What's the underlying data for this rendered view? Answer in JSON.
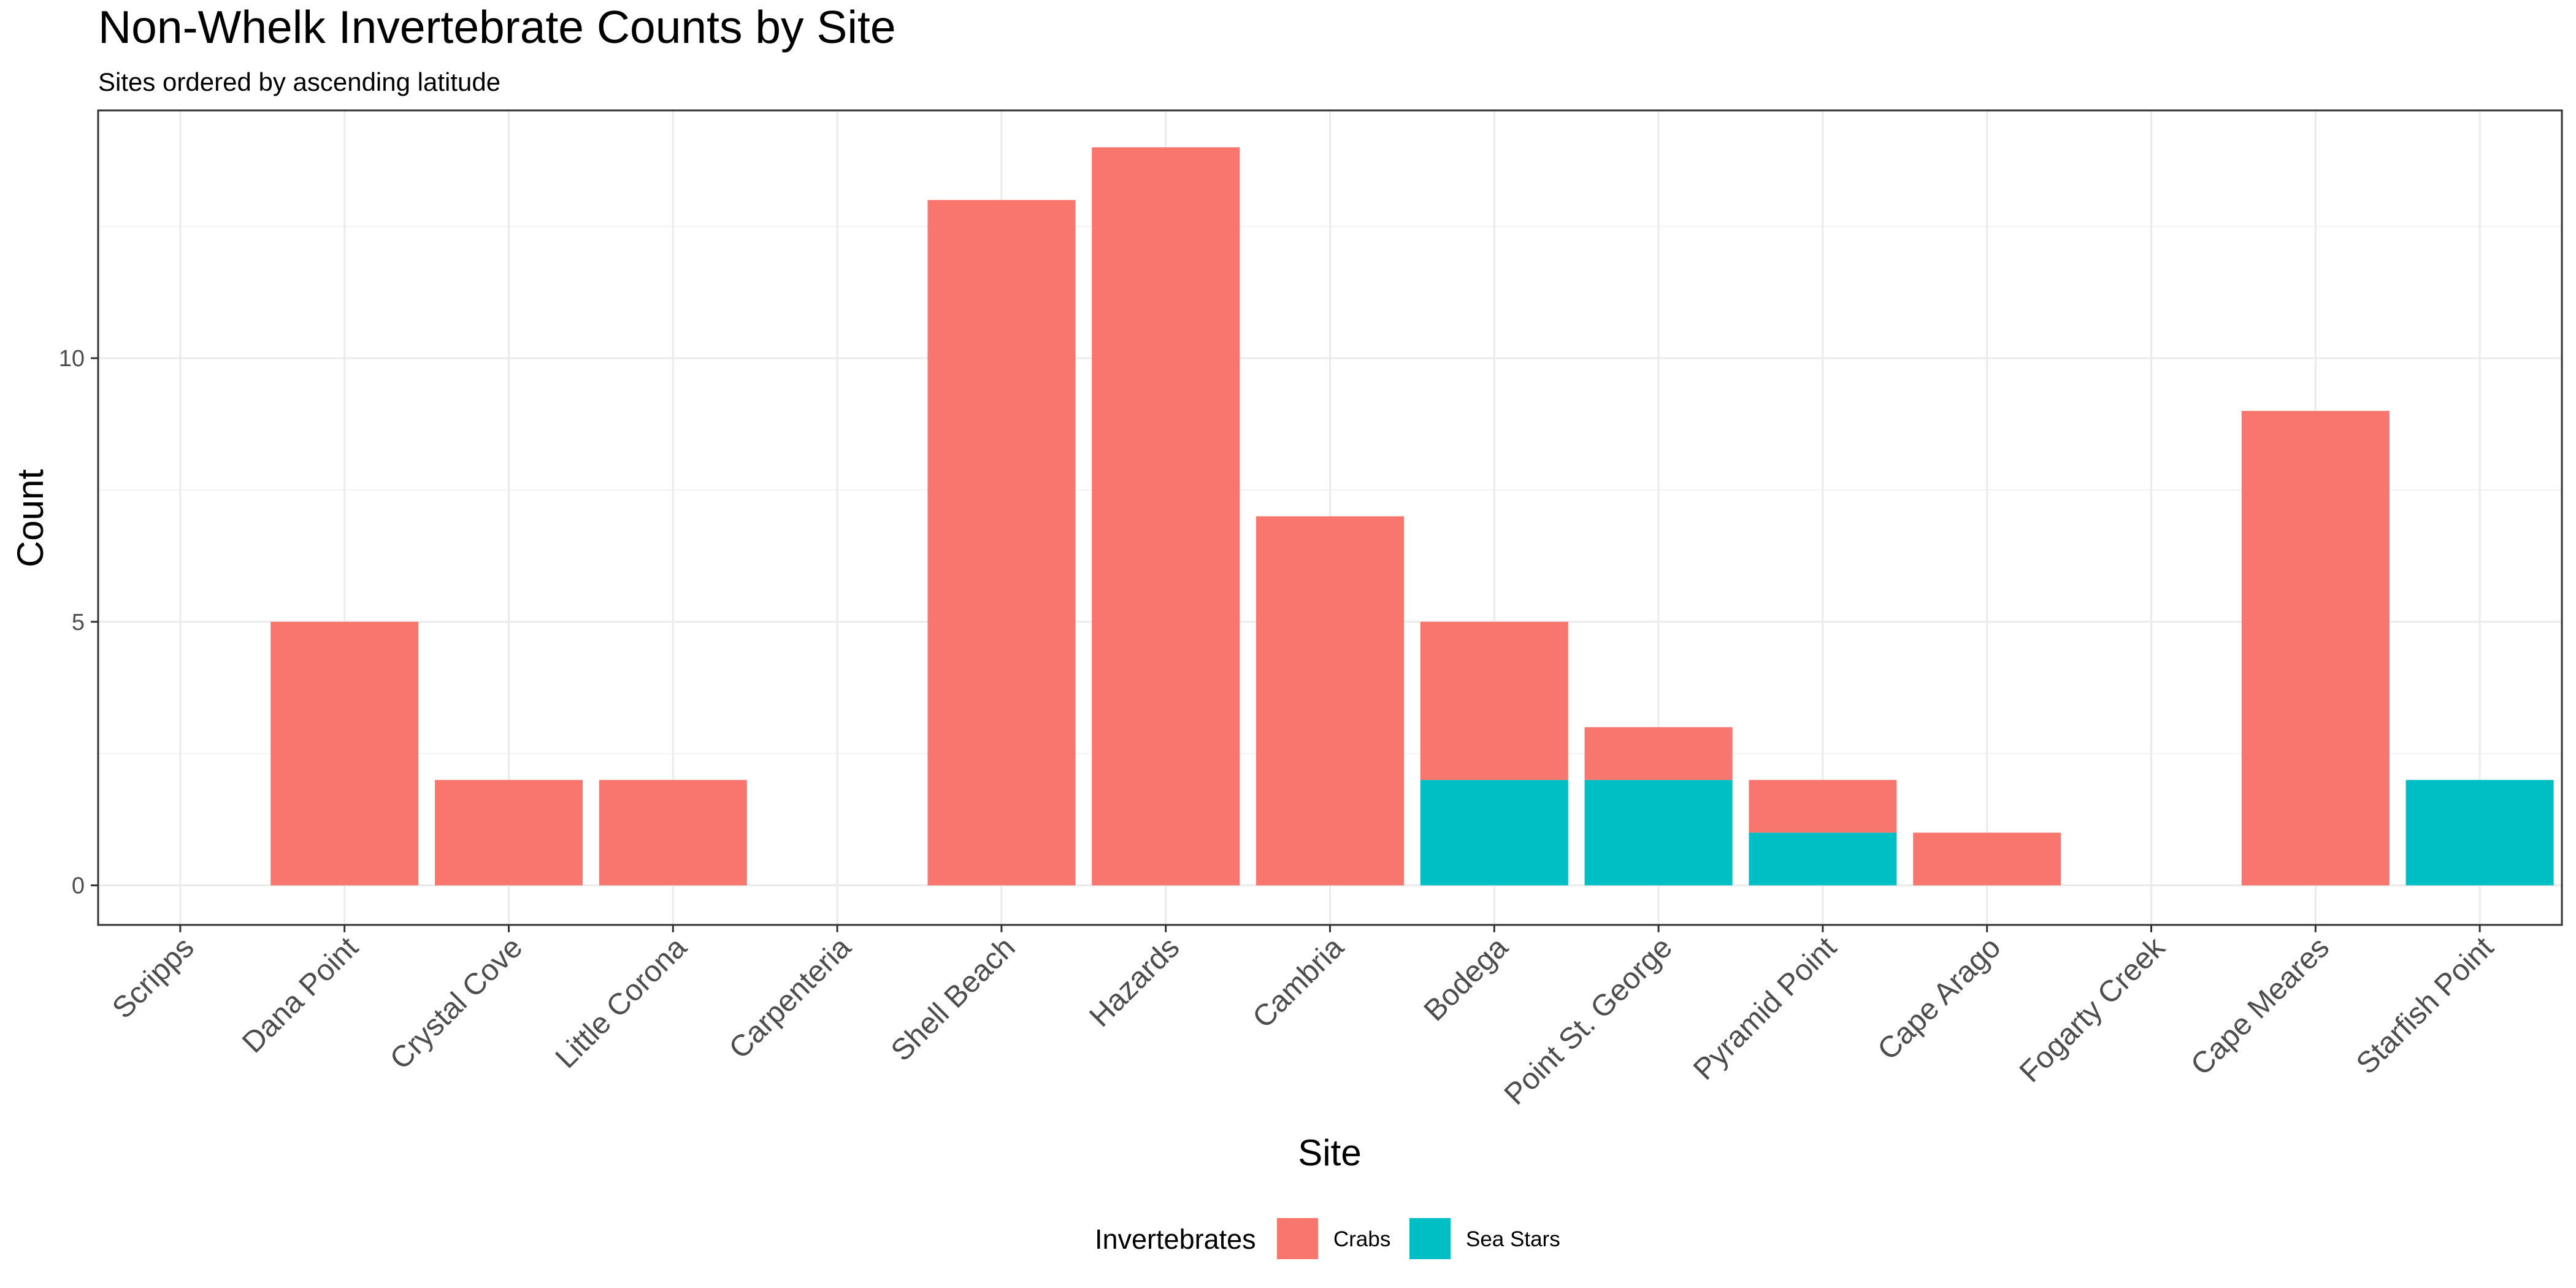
{
  "chart_data": {
    "type": "bar",
    "stacked": true,
    "title": "Non-Whelk Invertebrate Counts by Site",
    "subtitle": "Sites ordered by ascending latitude",
    "xlabel": "Site",
    "ylabel": "Count",
    "ylim": [
      -0.75,
      14.7
    ],
    "yticks": [
      0,
      5,
      10
    ],
    "grid": true,
    "legend_position": "bottom",
    "legend_title": "Invertebrates",
    "categories": [
      "Scripps",
      "Dana Point",
      "Crystal Cove",
      "Little Corona",
      "Carpenteria",
      "Shell Beach",
      "Hazards",
      "Cambria",
      "Bodega",
      "Point St. George",
      "Pyramid Point",
      "Cape Arago",
      "Fogarty Creek",
      "Cape Meares",
      "Starfish Point"
    ],
    "series": [
      {
        "name": "Sea Stars",
        "color": "#00BFC4",
        "values": [
          0,
          0,
          0,
          0,
          0,
          0,
          0,
          0,
          2,
          2,
          1,
          0,
          0,
          0,
          2
        ]
      },
      {
        "name": "Crabs",
        "color": "#F8766D",
        "values": [
          0,
          5,
          2,
          2,
          0,
          13,
          14,
          7,
          3,
          1,
          1,
          1,
          0,
          9,
          0
        ]
      }
    ],
    "legend_order": [
      "Crabs",
      "Sea Stars"
    ]
  }
}
